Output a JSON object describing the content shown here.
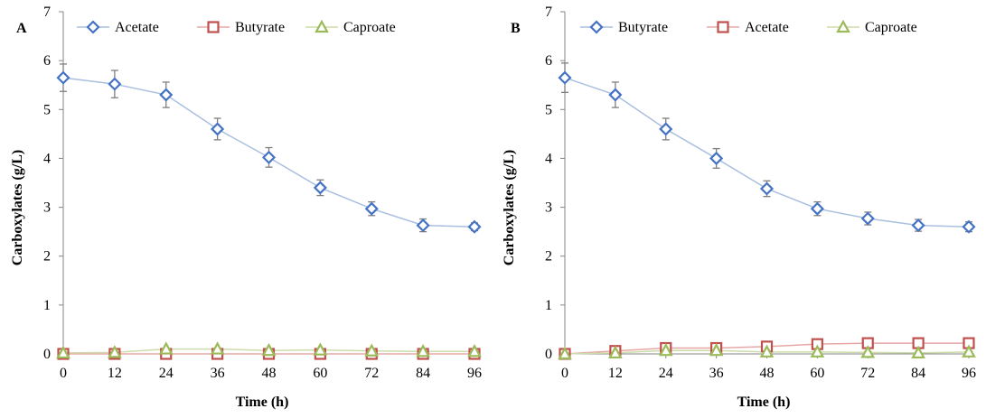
{
  "chart_data": [
    {
      "type": "line",
      "panel_label": "A",
      "x": [
        0,
        12,
        24,
        36,
        48,
        60,
        72,
        84,
        96
      ],
      "x_ticks": [
        "0",
        "12",
        "24",
        "36",
        "48",
        "60",
        "72",
        "84",
        "96"
      ],
      "y_ticks": [
        "0",
        "1",
        "2",
        "3",
        "4",
        "5",
        "6",
        "7"
      ],
      "ylim": [
        0,
        7
      ],
      "xlabel": "Time (h)",
      "ylabel": "Carboxylates (g/L)",
      "legend_position": "top",
      "grid": false,
      "series": [
        {
          "name": "Acetate",
          "marker": "diamond",
          "marker_color": "#4472c4",
          "line_color": "#a9bfe0",
          "values": [
            5.65,
            5.52,
            5.3,
            4.6,
            4.02,
            3.4,
            2.97,
            2.63,
            2.6
          ],
          "errors": [
            0.28,
            0.28,
            0.26,
            0.22,
            0.2,
            0.16,
            0.14,
            0.13,
            0.08
          ]
        },
        {
          "name": "Butyrate",
          "marker": "square",
          "marker_color": "#c0504d",
          "line_color": "#e6a8a6",
          "values": [
            0,
            0,
            0,
            0,
            0,
            0,
            0,
            0,
            0
          ],
          "errors": []
        },
        {
          "name": "Caproate",
          "marker": "triangle",
          "marker_color": "#9bbb59",
          "line_color": "#cddcaa",
          "values": [
            0.02,
            0.03,
            0.1,
            0.1,
            0.07,
            0.08,
            0.06,
            0.05,
            0.05
          ],
          "errors": []
        }
      ]
    },
    {
      "type": "line",
      "panel_label": "B",
      "x": [
        0,
        12,
        24,
        36,
        48,
        60,
        72,
        84,
        96
      ],
      "x_ticks": [
        "0",
        "12",
        "24",
        "36",
        "48",
        "60",
        "72",
        "84",
        "96"
      ],
      "y_ticks": [
        "0",
        "1",
        "2",
        "3",
        "4",
        "5",
        "6",
        "7"
      ],
      "ylim": [
        0,
        7
      ],
      "xlabel": "Time (h)",
      "ylabel": "Carboxylates (g/L)",
      "legend_position": "top",
      "grid": false,
      "series": [
        {
          "name": "Butyrate",
          "marker": "diamond",
          "marker_color": "#4472c4",
          "line_color": "#a9bfe0",
          "values": [
            5.65,
            5.3,
            4.6,
            4.0,
            3.38,
            2.97,
            2.77,
            2.63,
            2.6
          ],
          "errors": [
            0.3,
            0.26,
            0.22,
            0.2,
            0.16,
            0.14,
            0.13,
            0.12,
            0.1
          ]
        },
        {
          "name": "Acetate",
          "marker": "square",
          "marker_color": "#c0504d",
          "line_color": "#e6a8a6",
          "values": [
            0.0,
            0.06,
            0.12,
            0.12,
            0.15,
            0.2,
            0.22,
            0.22,
            0.22
          ],
          "errors": []
        },
        {
          "name": "Caproate",
          "marker": "triangle",
          "marker_color": "#9bbb59",
          "line_color": "#cddcaa",
          "values": [
            0.0,
            0.02,
            0.07,
            0.07,
            0.04,
            0.04,
            0.03,
            0.02,
            0.04
          ],
          "errors": []
        }
      ]
    }
  ]
}
